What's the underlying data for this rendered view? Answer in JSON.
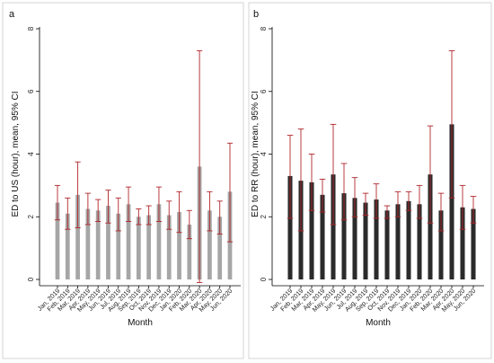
{
  "chart_data": [
    {
      "type": "bar",
      "panel_label": "a",
      "title": "",
      "xlabel": "Month",
      "ylabel": "ED to US (hour), mean, 95% CI",
      "ylim": [
        0,
        8
      ],
      "yticks": [
        "0",
        "2",
        "4",
        "6",
        "8"
      ],
      "grid": false,
      "bar_color": "#a6a6a6",
      "error_color": "#b0262b",
      "categories": [
        "Jan, 2019",
        "Feb, 2019",
        "Mar, 2019",
        "Apr, 2019",
        "May, 2019",
        "Jun, 2019",
        "Jul, 2019",
        "Aug, 2019",
        "Sep, 2019",
        "Oct, 2019",
        "Nov, 2019",
        "Dec, 2019",
        "Jan, 2020",
        "Feb, 2020",
        "Mar, 2020",
        "Apr, 2020",
        "May, 2020",
        "Jun, 2020"
      ],
      "values": [
        2.45,
        2.1,
        2.7,
        2.25,
        2.2,
        2.35,
        2.1,
        2.4,
        2.0,
        2.05,
        2.4,
        2.05,
        2.15,
        1.75,
        3.6,
        2.2,
        2.0,
        2.8
      ],
      "ci_low": [
        1.9,
        1.6,
        1.65,
        1.75,
        1.85,
        1.8,
        1.55,
        1.85,
        1.75,
        1.75,
        1.85,
        1.6,
        1.5,
        1.3,
        -0.1,
        1.55,
        1.45,
        1.2
      ],
      "ci_high": [
        3.0,
        2.6,
        3.75,
        2.75,
        2.55,
        2.85,
        2.6,
        2.95,
        2.25,
        2.35,
        2.95,
        2.5,
        2.8,
        2.2,
        7.3,
        2.8,
        2.5,
        4.35
      ]
    },
    {
      "type": "bar",
      "panel_label": "b",
      "title": "",
      "xlabel": "Month",
      "ylabel": "ED to RR (hour), mean, 95% CI",
      "ylim": [
        0,
        8
      ],
      "yticks": [
        "0",
        "2",
        "4",
        "6",
        "8"
      ],
      "grid": false,
      "bar_color": "#2b2b2b",
      "error_color": "#b0262b",
      "categories": [
        "Jan, 2019",
        "Feb, 2019",
        "Mar, 2019",
        "Apr, 2019",
        "May, 2019",
        "Jun, 2019",
        "Jul, 2019",
        "Aug, 2019",
        "Sep, 2019",
        "Oct, 2019",
        "Nov, 2019",
        "Dec, 2019",
        "Jan, 2020",
        "Feb, 2020",
        "Mar, 2020",
        "Apr, 2020",
        "May, 2020",
        "Jun, 2020"
      ],
      "values": [
        3.3,
        3.15,
        3.1,
        2.7,
        3.35,
        2.75,
        2.6,
        2.45,
        2.55,
        2.2,
        2.4,
        2.5,
        2.4,
        3.35,
        2.2,
        4.95,
        2.3,
        2.25
      ],
      "ci_low": [
        1.95,
        1.55,
        2.2,
        2.15,
        1.75,
        1.9,
        2.0,
        2.05,
        1.95,
        1.95,
        2.0,
        2.2,
        1.95,
        1.8,
        1.55,
        2.6,
        1.6,
        1.8
      ],
      "ci_high": [
        4.6,
        4.8,
        4.0,
        3.2,
        4.95,
        3.7,
        3.25,
        2.75,
        3.05,
        2.35,
        2.8,
        2.8,
        3.0,
        4.9,
        2.75,
        7.3,
        3.0,
        2.65
      ]
    }
  ]
}
